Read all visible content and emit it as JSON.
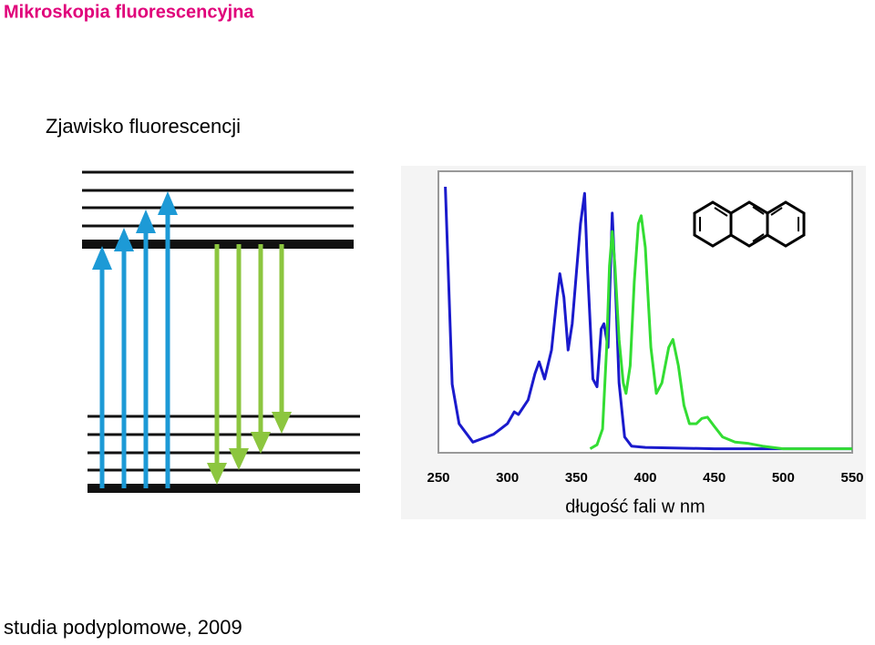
{
  "header": {
    "title": "Mikroskopia fluorescencyjna",
    "subtitle": "Zjawisko fluorescencji"
  },
  "footer": "studia podyplomowe, 2009",
  "chart_data": {
    "type": "line",
    "x_label": "długość fali w nm",
    "xlim": [
      250,
      550
    ],
    "xticks": [
      250,
      300,
      350,
      400,
      450,
      500,
      550
    ],
    "ylim": [
      0,
      100
    ],
    "series": [
      {
        "color": "#1a1acc",
        "x": [
          255,
          260,
          265,
          275,
          285,
          290,
          295,
          300,
          305,
          308,
          315,
          320,
          323,
          327,
          332,
          336,
          338,
          341,
          344,
          347,
          350,
          353,
          356,
          358,
          362,
          365,
          368,
          370,
          373,
          376,
          378,
          381,
          385,
          390,
          400,
          450,
          500,
          550
        ],
        "values": [
          100,
          25,
          10,
          3,
          5,
          6,
          8,
          10,
          14.5,
          13.5,
          19,
          29,
          33.5,
          27,
          38,
          58,
          67,
          58,
          38,
          48,
          67,
          86,
          97.5,
          70,
          27,
          24,
          46,
          48,
          39,
          90,
          67,
          25.5,
          5,
          1.5,
          1,
          0.5,
          0.5,
          0.5
        ]
      },
      {
        "color": "#33dd33",
        "x": [
          360,
          365,
          369,
          372,
          374,
          376,
          378,
          381,
          384,
          386,
          389,
          392,
          395,
          397,
          400,
          404,
          408,
          412,
          417,
          420,
          424,
          428,
          432,
          437,
          441,
          445,
          450,
          456,
          465,
          475,
          485,
          500,
          550
        ],
        "values": [
          0.5,
          2,
          8,
          39,
          70,
          83,
          70,
          42,
          25.5,
          21.5,
          32,
          64,
          86,
          89,
          77,
          39,
          21.5,
          25.5,
          39,
          42,
          32,
          17,
          10,
          10,
          12,
          12.5,
          9,
          5,
          3,
          2.5,
          1.5,
          0.5,
          0.5
        ]
      }
    ]
  }
}
